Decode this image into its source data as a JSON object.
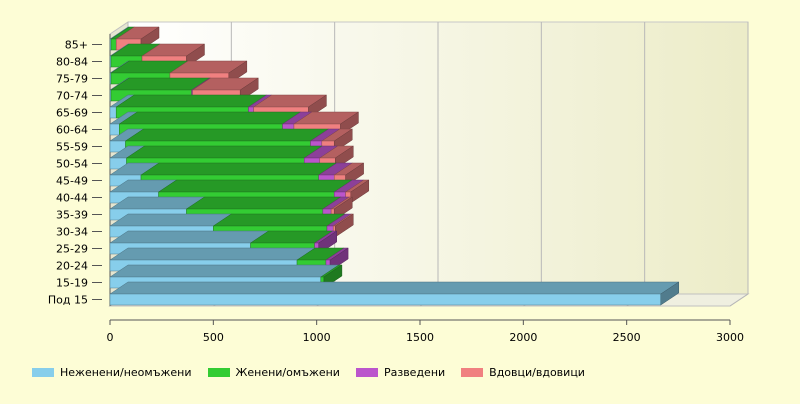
{
  "colors": {
    "background": "#fdfdd6",
    "plot_gradient_left": "#ffffff",
    "plot_gradient_right": "#ececc8",
    "grid": "#b8b8b8",
    "axis": "#555555"
  },
  "chart_data": {
    "type": "bar",
    "orientation": "horizontal",
    "stacked": true,
    "three_d": true,
    "grid": true,
    "legend_position": "bottom",
    "title": "",
    "xlabel": "",
    "ylabel": "",
    "xlim": [
      0,
      3000
    ],
    "xticks": [
      "0",
      "500",
      "1000",
      "1500",
      "2000",
      "2500",
      "3000"
    ],
    "categories": [
      "85+",
      "80-84",
      "75-79",
      "70-74",
      "65-69",
      "60-64",
      "55-59",
      "50-54",
      "45-49",
      "40-44",
      "35-39",
      "30-34",
      "25-29",
      "20-24",
      "15-19",
      "Под 15"
    ],
    "series": [
      {
        "name": "Неженени/неомъжени",
        "color": "#87ceeb",
        "values": [
          5,
          5,
          5,
          5,
          30,
          45,
          75,
          80,
          150,
          235,
          370,
          500,
          680,
          905,
          1020,
          2665
        ]
      },
      {
        "name": "Женени/омъжени",
        "color": "#33cc33",
        "values": [
          25,
          150,
          285,
          390,
          640,
          790,
          895,
          860,
          860,
          850,
          660,
          550,
          310,
          140,
          15,
          0
        ]
      },
      {
        "name": "Разведени",
        "color": "#bb55cc",
        "values": [
          0,
          0,
          0,
          5,
          25,
          55,
          55,
          75,
          75,
          55,
          40,
          30,
          20,
          20,
          0,
          0
        ]
      },
      {
        "name": "Вдовци/вдовици",
        "color": "#f08080",
        "values": [
          120,
          215,
          285,
          230,
          265,
          225,
          60,
          75,
          55,
          25,
          15,
          10,
          0,
          0,
          0,
          0
        ]
      }
    ]
  }
}
